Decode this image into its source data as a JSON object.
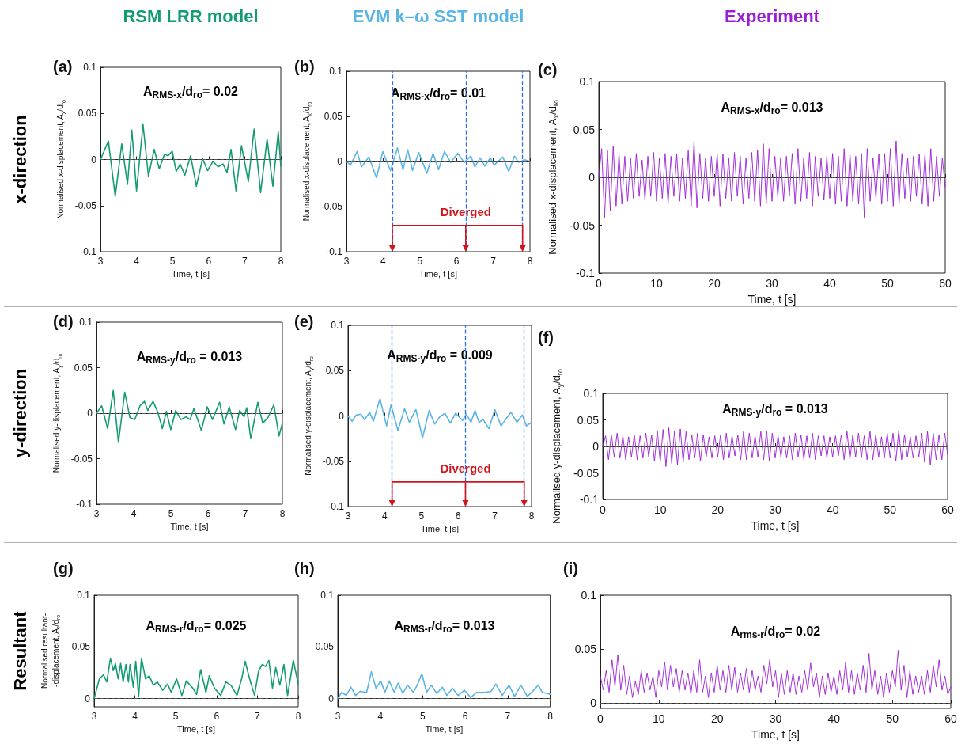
{
  "chart_data": [
    {
      "type": "line",
      "title": "(a)",
      "subtitle": "RSM LRR model",
      "xlabel": "Time, t [s]",
      "ylabel": "Normalised x-displacement, A$_{x}$/d$_{ro}$",
      "annotations": [
        "A$_{RMS-x}$/d$_{ro}$= 0.02",
        "x-direction"
      ],
      "line_style": "solid",
      "x": [
        3.0,
        3.22,
        3.41,
        3.59,
        3.75,
        3.87,
        4.0,
        4.18,
        4.33,
        4.49,
        4.63,
        4.78,
        4.87,
        4.99,
        5.1,
        5.21,
        5.34,
        5.5,
        5.66,
        5.83,
        5.97,
        6.12,
        6.26,
        6.4,
        6.51,
        6.62,
        6.76,
        6.91,
        7.1,
        7.26,
        7.44,
        7.62,
        7.78,
        7.93,
        8.0
      ],
      "series": [
        {
          "color": "#139c73",
          "values": [
            0,
            0.02,
            -0.04,
            0.017,
            -0.027,
            0.032,
            -0.034,
            0.038,
            -0.018,
            0.011,
            -0.01,
            0.006,
            0.004,
            0.009,
            -0.013,
            -0.005,
            -0.017,
            0.004,
            -0.029,
            0.001,
            -0.012,
            -0.002,
            -0.008,
            -0.005,
            -0.014,
            0.011,
            -0.034,
            0.015,
            -0.024,
            0.033,
            -0.036,
            0.022,
            -0.029,
            0.03,
            -0.007
          ]
        }
      ],
      "xlim": [
        3,
        8
      ],
      "ylim": [
        -0.1,
        0.1
      ],
      "xticks": [
        3,
        4,
        5,
        6,
        7,
        8
      ],
      "yticks": [
        -0.1,
        -0.05,
        0,
        0.05,
        0.1
      ],
      "ref_lines": [
        {
          "axis": "y",
          "value": 0,
          "color": "#555555",
          "line_style": "dashed"
        }
      ]
    },
    {
      "type": "line",
      "title": "(b)",
      "subtitle": "EVM k–ω SST model",
      "xlabel": "Time, t [s]",
      "ylabel": "Normalised x-displacement, A$_{x}$/d$_{ro}$",
      "annotations": [
        "A$_{RMS-x}$/d$_{ro}$= 0.01",
        {
          "text": "Diverged",
          "x": 6.25,
          "y": -0.056
        }
      ],
      "line_style": "solid",
      "x": [
        3.0,
        3.11,
        3.29,
        3.41,
        3.61,
        3.82,
        3.99,
        4.2,
        4.39,
        4.54,
        4.67,
        4.8,
        4.97,
        5.19,
        5.36,
        5.51,
        5.67,
        5.84,
        6.03,
        6.21,
        6.39,
        6.5,
        6.64,
        6.77,
        6.92,
        7.02,
        7.26,
        7.42,
        7.58,
        7.69,
        7.86,
        8.0
      ],
      "series": [
        {
          "color": "#5ab4e5",
          "values": [
            0,
            -0.004,
            0.011,
            -0.006,
            0.005,
            -0.018,
            0.011,
            -0.01,
            0.015,
            -0.009,
            0.013,
            -0.01,
            0.01,
            -0.013,
            0.009,
            -0.009,
            0.011,
            -0.001,
            0.009,
            -0.001,
            0.006,
            -0.006,
            0.004,
            -0.005,
            0.004,
            -0.004,
            0.005,
            -0.011,
            0.006,
            -0.001,
            0.002,
            0
          ]
        }
      ],
      "xlim": [
        3,
        8
      ],
      "ylim": [
        -0.1,
        0.1
      ],
      "xticks": [
        3,
        4,
        5,
        6,
        7,
        8
      ],
      "yticks": [
        -0.1,
        -0.05,
        0,
        0.05,
        0.1
      ],
      "ref_lines": [
        {
          "axis": "y",
          "value": 0,
          "color": "#555555",
          "line_style": "dashed"
        },
        {
          "axis": "x",
          "value": 4.25,
          "color": "#2f6fdc",
          "line_style": "dashed"
        },
        {
          "axis": "x",
          "value": 6.25,
          "color": "#2f6fdc",
          "line_style": "dashed"
        },
        {
          "axis": "x",
          "value": 7.8,
          "color": "#2f6fdc",
          "line_style": "dashed"
        }
      ]
    },
    {
      "type": "line",
      "title": "(c)",
      "subtitle": "Experiment",
      "xlabel": "Time, t [s]",
      "ylabel": "Normalised x-displacement, A$_{x}$/d$_{ro}$",
      "annotations": [
        "A$_{RMS-x}$/d$_{ro}$= 0.013"
      ],
      "line_style": "solid",
      "x": [
        0,
        0.5,
        1,
        1.5,
        2,
        2.5,
        3,
        3.5,
        4,
        4.5,
        5,
        5.5,
        6,
        6.5,
        7,
        7.5,
        8,
        8.5,
        9,
        9.5,
        10,
        10.5,
        11,
        11.5,
        12,
        12.5,
        13,
        13.5,
        14,
        14.5,
        15,
        15.5,
        16,
        16.5,
        17,
        17.5,
        18,
        18.5,
        19,
        19.5,
        20,
        20.5,
        21,
        21.5,
        22,
        22.5,
        23,
        23.5,
        24,
        24.5,
        25,
        25.5,
        26,
        26.5,
        27,
        27.5,
        28,
        28.5,
        29,
        29.5,
        30,
        30.5,
        31,
        31.5,
        32,
        32.5,
        33,
        33.5,
        34,
        34.5,
        35,
        35.5,
        36,
        36.5,
        37,
        37.5,
        38,
        38.5,
        39,
        39.5,
        40,
        40.5,
        41,
        41.5,
        42,
        42.5,
        43,
        43.5,
        44,
        44.5,
        45,
        45.5,
        46,
        46.5,
        47,
        47.5,
        48,
        48.5,
        49,
        49.5,
        50,
        50.5,
        51,
        51.5,
        52,
        52.5,
        53,
        53.5,
        54,
        54.5,
        55,
        55.5,
        56,
        56.5,
        57,
        57.5,
        58,
        58.5,
        59,
        59.5,
        60
      ],
      "series": [
        {
          "color": "#9a1ed6",
          "values": [
            0,
            0.03,
            -0.042,
            0.028,
            -0.035,
            0.033,
            -0.03,
            0.025,
            -0.028,
            0.022,
            -0.025,
            0.02,
            -0.022,
            0.025,
            -0.02,
            0.018,
            -0.024,
            0.022,
            -0.02,
            0.026,
            -0.025,
            0.02,
            -0.022,
            0.025,
            -0.028,
            0.022,
            -0.02,
            0.024,
            -0.025,
            0.02,
            -0.022,
            0.028,
            -0.03,
            0.038,
            -0.032,
            0.025,
            -0.022,
            0.02,
            -0.025,
            0.022,
            -0.02,
            0.025,
            -0.03,
            0.024,
            -0.022,
            0.02,
            -0.025,
            0.026,
            -0.02,
            0.022,
            -0.028,
            0.02,
            -0.022,
            0.026,
            -0.025,
            0.028,
            -0.03,
            0.035,
            -0.028,
            0.03,
            -0.025,
            0.022,
            -0.02,
            0.02,
            -0.025,
            0.022,
            -0.02,
            0.025,
            -0.028,
            0.03,
            -0.025,
            0.02,
            -0.022,
            0.026,
            -0.03,
            0.022,
            -0.02,
            0.02,
            -0.024,
            0.022,
            -0.022,
            0.025,
            -0.028,
            0.022,
            -0.025,
            0.03,
            -0.03,
            0.025,
            -0.025,
            0.022,
            -0.028,
            0.025,
            -0.042,
            0.03,
            -0.025,
            0.02,
            -0.022,
            0.024,
            -0.028,
            0.025,
            -0.025,
            0.03,
            -0.03,
            0.038,
            -0.028,
            0.025,
            -0.022,
            0.02,
            -0.025,
            0.022,
            -0.02,
            0.024,
            -0.028,
            0.025,
            -0.03,
            0.03,
            -0.025,
            0.022,
            -0.02,
            0.02,
            -0.01
          ]
        }
      ],
      "xlim": [
        0,
        60
      ],
      "ylim": [
        -0.1,
        0.1
      ],
      "xticks": [
        0,
        10,
        20,
        30,
        40,
        50,
        60
      ],
      "yticks": [
        -0.1,
        -0.05,
        0,
        0.05,
        0.1
      ],
      "ref_lines": [
        {
          "axis": "y",
          "value": 0,
          "color": "#555555",
          "line_style": "dashed"
        }
      ]
    },
    {
      "type": "line",
      "title": "(d)",
      "xlabel": "Time, t [s]",
      "ylabel": "Normalised y-displacement, A$_{y}$/d$_{ro}$",
      "annotations": [
        "A$_{RMS-y}$/d$_{ro}$ = 0.013",
        "y-direction"
      ],
      "line_style": "solid",
      "x": [
        3.0,
        3.14,
        3.3,
        3.45,
        3.59,
        3.76,
        3.9,
        4.03,
        4.17,
        4.29,
        4.38,
        4.52,
        4.65,
        4.77,
        4.88,
        5.0,
        5.13,
        5.27,
        5.41,
        5.52,
        5.62,
        5.82,
        5.98,
        6.12,
        6.31,
        6.43,
        6.57,
        6.74,
        6.85,
        6.97,
        7.04,
        7.15,
        7.34,
        7.47,
        7.61,
        7.77,
        7.91,
        8.0
      ],
      "series": [
        {
          "color": "#139c73",
          "values": [
            0,
            0.008,
            -0.017,
            0.025,
            -0.032,
            0.023,
            -0.005,
            -0.007,
            0.008,
            0.013,
            0.003,
            0.013,
            0.001,
            -0.017,
            0.002,
            -0.018,
            0.003,
            -0.007,
            -0.004,
            -0.007,
            0.005,
            -0.019,
            0.007,
            -0.007,
            0.012,
            -0.012,
            0.007,
            -0.018,
            0.003,
            -0.004,
            0.006,
            -0.028,
            0.012,
            -0.011,
            -0.005,
            0.009,
            -0.025,
            -0.011
          ]
        }
      ],
      "xlim": [
        3,
        8
      ],
      "ylim": [
        -0.1,
        0.1
      ],
      "xticks": [
        3,
        4,
        5,
        6,
        7,
        8
      ],
      "yticks": [
        -0.1,
        -0.05,
        0,
        0.05,
        0.1
      ],
      "ref_lines": [
        {
          "axis": "y",
          "value": 0,
          "color": "#555555",
          "line_style": "dashed"
        }
      ]
    },
    {
      "type": "line",
      "title": "(e)",
      "xlabel": "Time, t [s]",
      "ylabel": "Normalised y-displacement, A$_{y}$/d$_{ro}$",
      "annotations": [
        "A$_{RMS-y}$/d$_{ro}$ = 0.009",
        {
          "text": "Diverged",
          "x": 6.2,
          "y": -0.058
        }
      ],
      "line_style": "solid",
      "x": [
        3.0,
        3.11,
        3.22,
        3.35,
        3.45,
        3.59,
        3.69,
        3.87,
        4.05,
        4.17,
        4.36,
        4.54,
        4.67,
        4.85,
        5.03,
        5.21,
        5.36,
        5.5,
        5.64,
        5.79,
        5.93,
        6.12,
        6.22,
        6.35,
        6.46,
        6.57,
        6.68,
        6.84,
        7.0,
        7.17,
        7.29,
        7.44,
        7.6,
        7.75,
        7.86,
        8.0
      ],
      "series": [
        {
          "color": "#5ab4e5",
          "values": [
            0,
            -0.006,
            0.001,
            0.002,
            -0.004,
            0.004,
            -0.006,
            0.019,
            -0.011,
            0.012,
            -0.016,
            0.008,
            -0.007,
            0.007,
            -0.024,
            0.006,
            -0.009,
            -0.001,
            0.003,
            -0.008,
            0.003,
            -0.005,
            0.002,
            -0.007,
            0.006,
            -0.007,
            -0.004,
            -0.014,
            0.007,
            -0.011,
            -0.004,
            0.004,
            -0.007,
            0.001,
            -0.011,
            -0.007
          ]
        }
      ],
      "xlim": [
        3,
        8
      ],
      "ylim": [
        -0.1,
        0.1
      ],
      "xticks": [
        3,
        4,
        5,
        6,
        7,
        8
      ],
      "yticks": [
        -0.1,
        -0.05,
        0,
        0.05,
        0.1
      ],
      "ref_lines": [
        {
          "axis": "y",
          "value": 0,
          "color": "#555555",
          "line_style": "dashed"
        },
        {
          "axis": "x",
          "value": 4.2,
          "color": "#2f6fdc",
          "line_style": "dashed"
        },
        {
          "axis": "x",
          "value": 6.2,
          "color": "#2f6fdc",
          "line_style": "dashed"
        },
        {
          "axis": "x",
          "value": 7.8,
          "color": "#2f6fdc",
          "line_style": "dashed"
        }
      ]
    },
    {
      "type": "line",
      "title": "(f)",
      "xlabel": "Time, t [s]",
      "ylabel": "Normalised y-displacement, A$_{y}$/d$_{ro}$",
      "annotations": [
        "A$_{RMS-y}$/d$_{ro}$ = 0.013"
      ],
      "line_style": "solid",
      "x": [
        0,
        0.5,
        1,
        1.5,
        2,
        2.5,
        3,
        3.5,
        4,
        4.5,
        5,
        5.5,
        6,
        6.5,
        7,
        7.5,
        8,
        8.5,
        9,
        9.5,
        10,
        10.5,
        11,
        11.5,
        12,
        12.5,
        13,
        13.5,
        14,
        14.5,
        15,
        15.5,
        16,
        16.5,
        17,
        17.5,
        18,
        18.5,
        19,
        19.5,
        20,
        20.5,
        21,
        21.5,
        22,
        22.5,
        23,
        23.5,
        24,
        24.5,
        25,
        25.5,
        26,
        26.5,
        27,
        27.5,
        28,
        28.5,
        29,
        29.5,
        30,
        30.5,
        31,
        31.5,
        32,
        32.5,
        33,
        33.5,
        34,
        34.5,
        35,
        35.5,
        36,
        36.5,
        37,
        37.5,
        38,
        38.5,
        39,
        39.5,
        40,
        40.5,
        41,
        41.5,
        42,
        42.5,
        43,
        43.5,
        44,
        44.5,
        45,
        45.5,
        46,
        46.5,
        47,
        47.5,
        48,
        48.5,
        49,
        49.5,
        50,
        50.5,
        51,
        51.5,
        52,
        52.5,
        53,
        53.5,
        54,
        54.5,
        55,
        55.5,
        56,
        56.5,
        57,
        57.5,
        58,
        58.5,
        59,
        59.5,
        60
      ],
      "series": [
        {
          "color": "#9a1ed6",
          "values": [
            0,
            0.02,
            -0.025,
            0.022,
            -0.02,
            0.025,
            -0.022,
            0.02,
            -0.025,
            0.018,
            -0.02,
            0.022,
            -0.025,
            0.02,
            -0.022,
            0.025,
            -0.02,
            0.022,
            -0.028,
            0.03,
            -0.03,
            0.032,
            -0.038,
            0.035,
            -0.032,
            0.03,
            -0.035,
            0.033,
            -0.03,
            0.028,
            -0.025,
            0.022,
            -0.022,
            0.025,
            -0.028,
            0.022,
            -0.02,
            0.018,
            -0.022,
            0.02,
            -0.02,
            0.022,
            -0.025,
            0.025,
            -0.022,
            0.02,
            -0.018,
            0.022,
            -0.025,
            0.028,
            -0.025,
            0.025,
            -0.022,
            0.02,
            -0.02,
            0.028,
            -0.025,
            0.03,
            -0.028,
            0.025,
            -0.022,
            0.02,
            -0.02,
            0.018,
            -0.022,
            0.02,
            -0.025,
            0.025,
            -0.02,
            0.022,
            -0.025,
            0.02,
            -0.022,
            0.025,
            -0.025,
            0.02,
            -0.018,
            0.02,
            -0.022,
            0.018,
            -0.02,
            0.02,
            -0.018,
            0.022,
            -0.025,
            0.028,
            -0.025,
            0.022,
            -0.02,
            0.025,
            -0.022,
            0.02,
            -0.025,
            0.028,
            -0.025,
            0.022,
            -0.02,
            0.018,
            -0.022,
            0.025,
            -0.022,
            0.025,
            -0.028,
            0.03,
            -0.025,
            0.022,
            -0.02,
            0.018,
            -0.022,
            0.02,
            -0.02,
            0.025,
            -0.03,
            0.028,
            -0.035,
            0.025,
            -0.025,
            0.022,
            -0.025,
            0.025,
            -0.015
          ]
        }
      ],
      "xlim": [
        0,
        60
      ],
      "ylim": [
        -0.1,
        0.1
      ],
      "xticks": [
        0,
        10,
        20,
        30,
        40,
        50,
        60
      ],
      "yticks": [
        -0.1,
        -0.05,
        0,
        0.05,
        0.1
      ],
      "ref_lines": [
        {
          "axis": "y",
          "value": 0,
          "color": "#555555",
          "line_style": "dashed"
        }
      ]
    },
    {
      "type": "line",
      "title": "(g)",
      "xlabel": "Time, t [s]",
      "ylabel": "Normalised resultant-\n-displacement, A$_{r}$/d$_{ro}$",
      "annotations": [
        "A$_{RMS-r}$/d$_{ro}$= 0.025",
        "Resultant"
      ],
      "line_style": "solid",
      "x": [
        3.0,
        3.13,
        3.23,
        3.31,
        3.4,
        3.47,
        3.52,
        3.59,
        3.65,
        3.71,
        3.78,
        3.84,
        3.88,
        3.96,
        4.02,
        4.09,
        4.16,
        4.26,
        4.35,
        4.45,
        4.55,
        4.68,
        4.8,
        4.89,
        5.02,
        5.15,
        5.26,
        5.42,
        5.51,
        5.61,
        5.74,
        5.82,
        5.95,
        6.1,
        6.23,
        6.35,
        6.5,
        6.62,
        6.7,
        6.81,
        6.93,
        7.03,
        7.12,
        7.2,
        7.28,
        7.37,
        7.45,
        7.55,
        7.65,
        7.74,
        7.88,
        8.0
      ],
      "series": [
        {
          "color": "#139c73",
          "values": [
            0,
            0.019,
            0.023,
            0.016,
            0.039,
            0.027,
            0.034,
            0.019,
            0.034,
            0.016,
            0.033,
            0.016,
            0.033,
            0.011,
            0.036,
            0.002,
            0.039,
            0.019,
            0.022,
            0.013,
            0.016,
            0.008,
            0.014,
            0.006,
            0.019,
            0.003,
            0.017,
            0.01,
            0.004,
            0.028,
            0.006,
            0.022,
            0.01,
            0.003,
            0.016,
            0.013,
            0.003,
            0.02,
            0.036,
            0.019,
            0.003,
            0.027,
            0.033,
            0.031,
            0.037,
            0.01,
            0.03,
            0.013,
            0.033,
            0.003,
            0.037,
            0.014
          ]
        }
      ],
      "xlim": [
        3,
        8
      ],
      "ylim": [
        -0.008,
        0.1
      ],
      "xticks": [
        3,
        4,
        5,
        6,
        7,
        8
      ],
      "yticks": [
        0,
        0.05,
        0.1
      ],
      "ref_lines": [
        {
          "axis": "y",
          "value": 0,
          "color": "#555555",
          "line_style": "dashed"
        }
      ]
    },
    {
      "type": "line",
      "title": "(h)",
      "xlabel": "Time, t [s]",
      "annotations": [
        "A$_{RMS-r}$/d$_{ro}$= 0.013"
      ],
      "line_style": "solid",
      "x": [
        3.0,
        3.09,
        3.2,
        3.31,
        3.42,
        3.53,
        3.68,
        3.79,
        3.9,
        4.01,
        4.11,
        4.21,
        4.33,
        4.42,
        4.53,
        4.64,
        4.78,
        4.87,
        4.98,
        5.09,
        5.2,
        5.33,
        5.46,
        5.57,
        5.7,
        5.83,
        5.98,
        6.13,
        6.27,
        6.46,
        6.61,
        6.72,
        6.87,
        7.03,
        7.16,
        7.31,
        7.46,
        7.61,
        7.72,
        7.81,
        8.0
      ],
      "series": [
        {
          "color": "#5ab4e5",
          "values": [
            0,
            0.006,
            0.003,
            0.011,
            0.003,
            0.007,
            0.006,
            0.026,
            0.01,
            0.017,
            0.006,
            0.017,
            0.006,
            0.015,
            0.005,
            0.013,
            0.006,
            0.013,
            0.024,
            0.006,
            0.013,
            0.005,
            0.011,
            0.003,
            0.01,
            0.003,
            0.008,
            0.001,
            0.006,
            0.006,
            0.007,
            0.014,
            0.003,
            0.013,
            0.002,
            0.013,
            0.002,
            0.008,
            0.013,
            0.006,
            0.004
          ]
        }
      ],
      "xlim": [
        3,
        8
      ],
      "ylim": [
        -0.008,
        0.1
      ],
      "xticks": [
        3,
        4,
        5,
        6,
        7,
        8
      ],
      "yticks": [
        0,
        0.05,
        0.1
      ],
      "ref_lines": [
        {
          "axis": "y",
          "value": 0,
          "color": "#555555",
          "line_style": "dashed"
        }
      ]
    },
    {
      "type": "line",
      "title": "(i)",
      "xlabel": "Time, t [s]",
      "annotations": [
        "A$_{rms-r}$/d$_{ro}$= 0.02"
      ],
      "line_style": "solid",
      "x": [
        0,
        0.5,
        1,
        1.5,
        2,
        2.5,
        3,
        3.5,
        4,
        4.5,
        5,
        5.5,
        6,
        6.5,
        7,
        7.5,
        8,
        8.5,
        9,
        9.5,
        10,
        10.5,
        11,
        11.5,
        12,
        12.5,
        13,
        13.5,
        14,
        14.5,
        15,
        15.5,
        16,
        16.5,
        17,
        17.5,
        18,
        18.5,
        19,
        19.5,
        20,
        20.5,
        21,
        21.5,
        22,
        22.5,
        23,
        23.5,
        24,
        24.5,
        25,
        25.5,
        26,
        26.5,
        27,
        27.5,
        28,
        28.5,
        29,
        29.5,
        30,
        30.5,
        31,
        31.5,
        32,
        32.5,
        33,
        33.5,
        34,
        34.5,
        35,
        35.5,
        36,
        36.5,
        37,
        37.5,
        38,
        38.5,
        39,
        39.5,
        40,
        40.5,
        41,
        41.5,
        42,
        42.5,
        43,
        43.5,
        44,
        44.5,
        45,
        45.5,
        46,
        46.5,
        47,
        47.5,
        48,
        48.5,
        49,
        49.5,
        50,
        50.5,
        51,
        51.5,
        52,
        52.5,
        53,
        53.5,
        54,
        54.5,
        55,
        55.5,
        56,
        56.5,
        57,
        57.5,
        58,
        58.5,
        59,
        59.5,
        60
      ],
      "series": [
        {
          "color": "#9a1ed6",
          "values": [
            0.025,
            0.012,
            0.03,
            0.01,
            0.04,
            0.015,
            0.045,
            0.012,
            0.035,
            0.008,
            0.025,
            0.005,
            0.02,
            0.008,
            0.03,
            0.01,
            0.028,
            0.012,
            0.025,
            0.005,
            0.03,
            0.015,
            0.038,
            0.012,
            0.035,
            0.015,
            0.032,
            0.01,
            0.03,
            0.012,
            0.028,
            0.008,
            0.03,
            0.01,
            0.04,
            0.01,
            0.025,
            0.005,
            0.028,
            0.01,
            0.035,
            0.012,
            0.03,
            0.01,
            0.035,
            0.012,
            0.033,
            0.01,
            0.028,
            0.012,
            0.032,
            0.01,
            0.03,
            0.012,
            0.025,
            0.01,
            0.035,
            0.018,
            0.04,
            0.015,
            0.03,
            0.005,
            0.028,
            0.008,
            0.03,
            0.01,
            0.028,
            0.008,
            0.025,
            0.01,
            0.03,
            0.012,
            0.037,
            0.015,
            0.028,
            0.005,
            0.025,
            0.008,
            0.028,
            0.01,
            0.025,
            0.008,
            0.03,
            0.012,
            0.038,
            0.01,
            0.03,
            0.008,
            0.028,
            0.012,
            0.035,
            0.01,
            0.046,
            0.012,
            0.03,
            0.008,
            0.025,
            0.005,
            0.028,
            0.01,
            0.03,
            0.015,
            0.049,
            0.012,
            0.035,
            0.005,
            0.03,
            0.008,
            0.025,
            0.01,
            0.025,
            0.008,
            0.03,
            0.01,
            0.035,
            0.015,
            0.04,
            0.012,
            0.025,
            0.008,
            0.015
          ]
        }
      ],
      "xlim": [
        0,
        60
      ],
      "ylim": [
        -0.005,
        0.1
      ],
      "xticks": [
        0,
        10,
        20,
        30,
        40,
        50,
        60
      ],
      "yticks": [
        0,
        0.05,
        0.1
      ],
      "ref_lines": [
        {
          "axis": "y",
          "value": 0,
          "color": "#555555",
          "line_style": "dashed"
        }
      ]
    }
  ]
}
